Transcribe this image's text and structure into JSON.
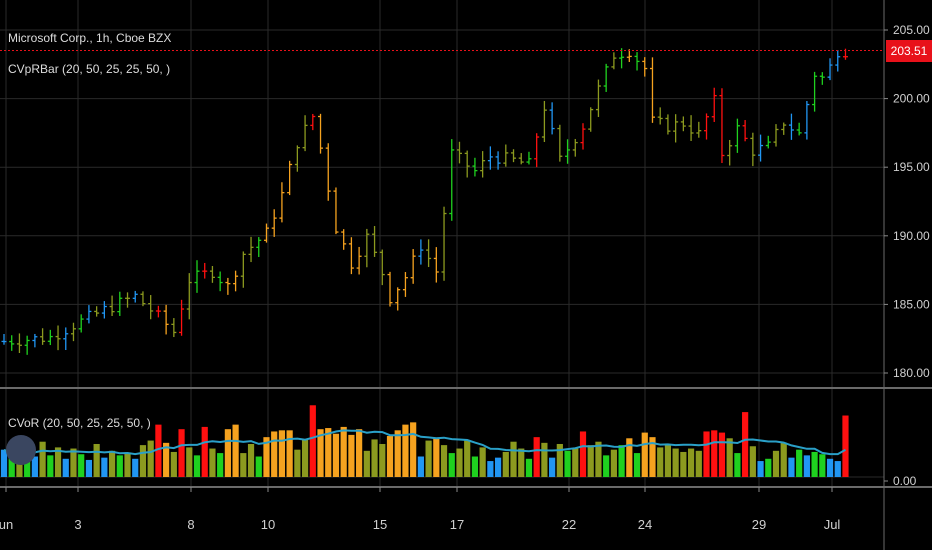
{
  "header": {
    "symbol_line": "Microsoft Corp., 1h, Cboe BZX",
    "overlay_indicator": "CVpRBar (20, 50, 25, 25, 50, )",
    "volume_indicator": "CVoR (20, 50, 25, 25, 50, )"
  },
  "last_price_label": "203.51",
  "colors": {
    "background": "#000000",
    "grid": "#2a2a2a",
    "last_price_line": "#e8111a",
    "volume_ma": "#2aa0c8",
    "bucket_colors": [
      "#2196f3",
      "#1fd11f",
      "#8c9a1f",
      "#f5a21f",
      "#ff1010"
    ]
  },
  "chart_data": [
    {
      "type": "ohlc",
      "title": "Microsoft Corp., 1h, Cboe BZX",
      "y_ticks": [
        "205.00",
        "200.00",
        "195.00",
        "190.00",
        "185.00",
        "180.00"
      ],
      "ylim": [
        179.5,
        205.5
      ],
      "x_ticks": [
        "un",
        "3",
        "8",
        "10",
        "15",
        "17",
        "22",
        "24",
        "29",
        "Jul"
      ],
      "last_price": 203.51,
      "close_path": [
        [
          0,
          182.3
        ],
        [
          6,
          182.6
        ],
        [
          9,
          183.5
        ],
        [
          13,
          184.6
        ],
        [
          17,
          185.6
        ],
        [
          20,
          184.1
        ],
        [
          22,
          183.0
        ],
        [
          24,
          186.8
        ],
        [
          27,
          187.4
        ],
        [
          29,
          186.3
        ],
        [
          31,
          188.7
        ],
        [
          34,
          190.2
        ],
        [
          36,
          193.0
        ],
        [
          38,
          196.8
        ],
        [
          40,
          198.7
        ],
        [
          41,
          196.4
        ],
        [
          43,
          190.6
        ],
        [
          45,
          188.0
        ],
        [
          47,
          189.9
        ],
        [
          49,
          187.3
        ],
        [
          50,
          185.5
        ],
        [
          52,
          187.0
        ],
        [
          54,
          189.3
        ],
        [
          56,
          187.4
        ],
        [
          58,
          196.0
        ],
        [
          61,
          194.7
        ],
        [
          63,
          195.8
        ],
        [
          66,
          195.5
        ],
        [
          68,
          195.2
        ],
        [
          70,
          199.4
        ],
        [
          72,
          195.5
        ],
        [
          75,
          198.0
        ],
        [
          77,
          200.7
        ],
        [
          79,
          203.2
        ],
        [
          81,
          203.5
        ],
        [
          83,
          202.2
        ],
        [
          84,
          198.3
        ],
        [
          86,
          198.0
        ],
        [
          88,
          198.2
        ],
        [
          90,
          197.4
        ],
        [
          92,
          199.8
        ],
        [
          93,
          196.0
        ],
        [
          95,
          197.8
        ],
        [
          97,
          196.2
        ],
        [
          99,
          196.5
        ],
        [
          101,
          198.3
        ],
        [
          103,
          197.4
        ],
        [
          105,
          201.8
        ],
        [
          106,
          201.5
        ],
        [
          107,
          202.3
        ],
        [
          108,
          203.5
        ]
      ],
      "color_buckets": [
        "blue",
        "green",
        "olive",
        "orange",
        "red"
      ]
    },
    {
      "type": "bar",
      "title": "CVoR (20, 50, 25, 25, 50, )",
      "y_ticks": [
        "0.00"
      ],
      "series": [
        {
          "values": [
            2.4,
            1.7,
            2.7,
            2.2,
            1.8,
            3.1,
            1.9,
            2.6,
            1.6,
            2.5,
            2.0,
            1.5,
            2.9,
            1.7,
            2.3,
            1.9,
            2.1,
            1.6,
            2.8,
            3.2,
            4.6,
            3.0,
            2.2,
            4.2,
            2.6,
            1.9,
            4.4,
            2.5,
            2.1,
            4.2,
            4.6,
            2.1,
            2.9,
            1.8,
            3.5,
            4.0,
            4.1,
            4.1,
            2.4,
            3.3,
            6.3,
            4.2,
            4.3,
            3.8,
            4.4,
            3.7,
            4.2,
            2.3,
            3.3,
            2.9,
            3.6,
            4.1,
            4.6,
            4.8,
            1.8,
            3.2,
            3.4,
            2.8,
            2.1,
            2.5,
            3.2,
            1.8,
            2.6,
            1.4,
            1.7,
            2.2,
            3.1,
            2.5,
            1.6,
            3.5,
            3.0,
            1.7,
            2.9,
            2.3,
            2.5,
            4.0,
            2.8,
            3.1,
            1.9,
            2.4,
            2.8,
            3.4,
            2.1,
            3.9,
            3.5,
            2.6,
            2.9,
            2.5,
            2.2,
            2.5,
            2.3,
            4.0,
            4.1,
            3.9,
            3.4,
            2.1,
            5.7,
            2.7,
            1.4,
            1.6,
            2.3,
            3.0,
            1.7,
            2.4,
            1.9,
            2.2,
            2.0,
            1.6,
            1.4,
            5.4
          ],
          "buckets": [
            0,
            1,
            2,
            1,
            0,
            2,
            1,
            2,
            0,
            2,
            1,
            0,
            2,
            0,
            2,
            1,
            2,
            0,
            2,
            2,
            4,
            3,
            2,
            4,
            2,
            1,
            4,
            2,
            1,
            3,
            3,
            2,
            2,
            1,
            3,
            3,
            3,
            3,
            2,
            2,
            4,
            3,
            3,
            3,
            3,
            3,
            3,
            2,
            2,
            2,
            3,
            3,
            3,
            3,
            0,
            2,
            3,
            2,
            1,
            2,
            2,
            1,
            2,
            0,
            0,
            2,
            2,
            2,
            1,
            4,
            2,
            0,
            2,
            1,
            2,
            4,
            2,
            2,
            1,
            2,
            1,
            3,
            1,
            3,
            3,
            2,
            2,
            2,
            2,
            2,
            2,
            4,
            4,
            4,
            2,
            1,
            4,
            2,
            0,
            1,
            2,
            2,
            0,
            1,
            0,
            1,
            1,
            0,
            0,
            4
          ]
        }
      ]
    }
  ]
}
